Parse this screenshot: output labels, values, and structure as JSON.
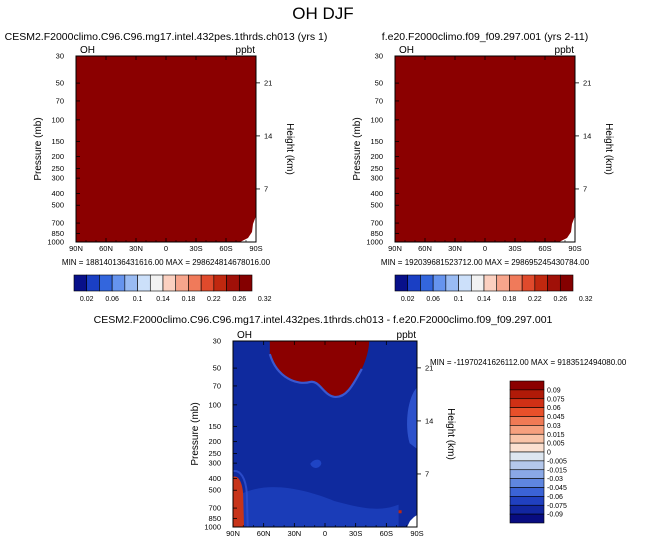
{
  "page_title": "OH DJF",
  "chart_data": [
    {
      "type": "heatmap",
      "title": "CESM2.F2000climo.C96.C96.mg17.intel.432pes.1thrds.ch013 (yrs 1)",
      "variable_label": "OH",
      "units_label": "ppbt",
      "ylabel": "Pressure (mb)",
      "y2label": "Height (km)",
      "x_ticks": [
        "90N",
        "60N",
        "30N",
        "0",
        "30S",
        "60S",
        "90S"
      ],
      "y_ticks": [
        "30",
        "50",
        "70",
        "100",
        "150",
        "200",
        "250",
        "300",
        "400",
        "500",
        "700",
        "850",
        "1000"
      ],
      "y2_ticks": [
        "21",
        "14",
        "7"
      ],
      "ylim": [
        1000,
        30
      ],
      "stats_text": "MIN = 188140136431616.00  MAX = 298624814678016.00",
      "colorbar_levels": [
        "0.02",
        "0.06",
        "0.1",
        "0.14",
        "0.18",
        "0.22",
        "0.26",
        "0.32"
      ],
      "colorbar_colors": [
        "#08108a",
        "#1a3fc4",
        "#3366dd",
        "#6694ee",
        "#99bbf3",
        "#cce0fa",
        "#f2f2f2",
        "#fbd0c0",
        "#f7a58c",
        "#f07a5a",
        "#e04a2c",
        "#c0280f",
        "#a01008",
        "#840000"
      ],
      "field_description": "entire field above top colorbar level",
      "fill_color": "#8b0000"
    },
    {
      "type": "heatmap",
      "title": "f.e20.F2000climo.f09_f09.297.001 (yrs 2-11)",
      "variable_label": "OH",
      "units_label": "ppbt",
      "ylabel": "Pressure (mb)",
      "y2label": "Height (km)",
      "x_ticks": [
        "90N",
        "60N",
        "30N",
        "0",
        "30S",
        "60S",
        "90S"
      ],
      "y_ticks": [
        "30",
        "50",
        "70",
        "100",
        "150",
        "200",
        "250",
        "300",
        "400",
        "500",
        "700",
        "850",
        "1000"
      ],
      "y2_ticks": [
        "21",
        "14",
        "7"
      ],
      "ylim": [
        1000,
        30
      ],
      "stats_text": "MIN = 192039681523712.00  MAX = 298695245430784.00",
      "colorbar_levels": [
        "0.02",
        "0.06",
        "0.1",
        "0.14",
        "0.18",
        "0.22",
        "0.26",
        "0.32"
      ],
      "colorbar_colors": [
        "#08108a",
        "#1a3fc4",
        "#3366dd",
        "#6694ee",
        "#99bbf3",
        "#cce0fa",
        "#f2f2f2",
        "#fbd0c0",
        "#f7a58c",
        "#f07a5a",
        "#e04a2c",
        "#c0280f",
        "#a01008",
        "#840000"
      ],
      "fill_color": "#8b0000"
    },
    {
      "type": "heatmap",
      "title": "CESM2.F2000climo.C96.C96.mg17.intel.432pes.1thrds.ch013 - f.e20.F2000climo.f09_f09.297.001",
      "variable_label": "OH",
      "units_label": "ppbt",
      "ylabel": "Pressure (mb)",
      "y2label": "Height (km)",
      "x_ticks": [
        "90N",
        "60N",
        "30N",
        "0",
        "30S",
        "60S",
        "90S"
      ],
      "y_ticks": [
        "30",
        "50",
        "70",
        "100",
        "150",
        "200",
        "250",
        "300",
        "400",
        "500",
        "700",
        "850",
        "1000"
      ],
      "y2_ticks": [
        "21",
        "14",
        "7"
      ],
      "ylim": [
        1000,
        30
      ],
      "stats_text": "MIN = -11970241626112.00  MAX = 9183512494080.00",
      "colorbar_levels": [
        "0.09",
        "0.075",
        "0.06",
        "0.045",
        "0.03",
        "0.015",
        "0.005",
        "0",
        "-0.005",
        "-0.015",
        "-0.03",
        "-0.045",
        "-0.06",
        "-0.075",
        "-0.09"
      ],
      "colorbar_colors": [
        "#8b0000",
        "#b01a08",
        "#d03015",
        "#e8502a",
        "#f07a55",
        "#f6a07e",
        "#f9c4a8",
        "#fbe0d0",
        "#dde6f0",
        "#b4c8ec",
        "#8aa8e6",
        "#5f86e0",
        "#3b63d6",
        "#2040c0",
        "#1226a0",
        "#080c80"
      ],
      "background_color": "#0f2a9e",
      "positive_color": "#8b0000"
    }
  ]
}
